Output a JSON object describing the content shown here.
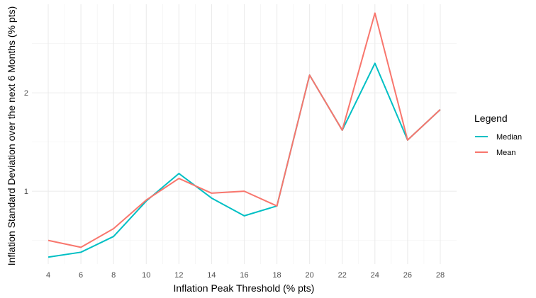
{
  "chart_data": {
    "type": "line",
    "xlabel": "Inflation Peak Threshold (% pts)",
    "ylabel": "Inflation Standard Deviation over the next 6 Months (% pts)",
    "x": [
      4,
      6,
      8,
      10,
      12,
      14,
      16,
      18,
      20,
      22,
      24,
      26,
      28
    ],
    "x_ticks": [
      "4",
      "6",
      "8",
      "10",
      "12",
      "14",
      "16",
      "18",
      "20",
      "22",
      "24",
      "26",
      "28"
    ],
    "y_ticks": [
      "1",
      "2"
    ],
    "xlim": [
      3,
      29
    ],
    "ylim": [
      0.26,
      2.9
    ],
    "grid": true,
    "legend": {
      "title": "Legend",
      "position": "right"
    },
    "series": [
      {
        "name": "Median",
        "color": "#00BFC4",
        "values": [
          0.33,
          0.38,
          0.54,
          0.9,
          1.18,
          0.93,
          0.75,
          0.85,
          2.18,
          1.62,
          2.3,
          1.52,
          1.83
        ]
      },
      {
        "name": "Mean",
        "color": "#F8766D",
        "values": [
          0.5,
          0.43,
          0.62,
          0.91,
          1.13,
          0.98,
          1.0,
          0.85,
          2.18,
          1.62,
          2.81,
          1.52,
          1.83
        ]
      }
    ]
  }
}
